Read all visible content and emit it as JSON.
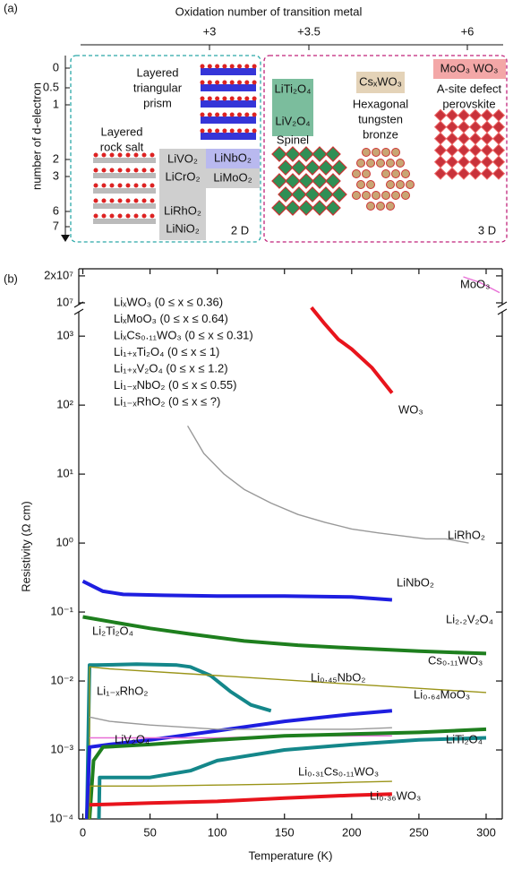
{
  "panel_a": {
    "panel_label": "(a)",
    "title": "Oxidation number of transition metal",
    "top_ticks": [
      "+3",
      "+3.5",
      "+6"
    ],
    "y_label": "number of d-electron",
    "y_ticks": [
      "0",
      "0.5",
      "1",
      "2",
      "3",
      "6",
      "7"
    ],
    "dimension_labels": [
      "2 D",
      "3 D"
    ],
    "prism_label": [
      "Layered",
      "triangular",
      "prism"
    ],
    "rocksalt_label": [
      "Layered",
      "rock salt"
    ],
    "gray_box": [
      "LiVO₂",
      "LiCrO₂",
      "LiRhO₂",
      "LiNiO₂"
    ],
    "purple_box": [
      "LiNbO₂",
      "LiMoO₂"
    ],
    "spinel_box": [
      "LiTi₂O₄",
      "LiV₂O₄"
    ],
    "spinel_label": "Spinel",
    "bronze_box": "CsₓWO₃",
    "bronze_label": [
      "Hexagonal",
      "tungsten",
      "bronze"
    ],
    "perovskite_box": "MoO₃ WO₃",
    "perovskite_label": [
      "A-site defect",
      "perovskite"
    ]
  },
  "chart_data": {
    "type": "line",
    "panel_label": "(b)",
    "x_label": "Temperature (K)",
    "y_label": "Resistivity (Ω cm)",
    "yscale": "log",
    "xlim": [
      -3,
      312
    ],
    "xticks": [
      0,
      50,
      100,
      150,
      200,
      250,
      300
    ],
    "ylim": [
      0.0001,
      2000
    ],
    "yticks": [
      {
        "value": 0.0001,
        "label": "10⁻⁴"
      },
      {
        "value": 0.001,
        "label": "10⁻³"
      },
      {
        "value": 0.01,
        "label": "10⁻²"
      },
      {
        "value": 0.1,
        "label": "10⁻¹"
      },
      {
        "value": 1,
        "label": "10⁰"
      },
      {
        "value": 10,
        "label": "10¹"
      },
      {
        "value": 100,
        "label": "10²"
      },
      {
        "value": 1000,
        "label": "10³"
      }
    ],
    "ylim_upper": [
      10000000,
      24000000
    ],
    "yticks_upper": [
      {
        "value": 10000000,
        "label": "10⁷"
      },
      {
        "value": 20000000,
        "label": "2x10⁷"
      }
    ],
    "legend": [
      {
        "name": "LiₓWO₃ (0 ≤ x ≤ 0.36)",
        "color": "#e8141c"
      },
      {
        "name": "LiₓMoO₃ (0 ≤ x ≤ 0.64)",
        "color": "#e86fd6"
      },
      {
        "name": "LiₓCs₀.₁₁WO₃ (0 ≤ x ≤ 0.31)",
        "color": "#9a9418"
      },
      {
        "name": "Li₁₊ₓTi₂O₄ (0 ≤ x ≤ 1)",
        "color": "#14878a"
      },
      {
        "name": "Li₁₊ₓV₂O₄ (0 ≤ x ≤ 1.2)",
        "color": "#1e7f1e"
      },
      {
        "name": "Li₁₋ₓNbO₂ (0 ≤ x ≤ 0.55)",
        "color": "#1e1ee0"
      },
      {
        "name": "Li₁₋ₓRhO₂ (0 ≤ x ≤ ?)",
        "color": "#999999"
      }
    ],
    "series": [
      {
        "name": "WO₃",
        "color": "#e8141c",
        "x": [
          170,
          180,
          190,
          200,
          215,
          230
        ],
        "values": [
          2600,
          1500,
          900,
          650,
          350,
          150
        ]
      },
      {
        "name": "MoO₃",
        "color": "#e86fd6",
        "panel": "upper",
        "x": [
          283,
          295,
          310
        ],
        "values": [
          19500000,
          17000000,
          13000000
        ]
      },
      {
        "name": "LiRhO₂",
        "color": "#999999",
        "x": [
          78,
          90,
          105,
          120,
          140,
          160,
          180,
          200,
          220,
          240,
          255,
          270,
          287
        ],
        "values": [
          50,
          20,
          10,
          6,
          3.8,
          2.6,
          2,
          1.6,
          1.4,
          1.25,
          1.15,
          1.15,
          1
        ]
      },
      {
        "name": "LiNbO₂",
        "color": "#1e1ee0",
        "x": [
          0,
          5,
          15,
          30,
          60,
          100,
          150,
          200,
          230
        ],
        "values": [
          0.28,
          0.25,
          0.2,
          0.18,
          0.175,
          0.17,
          0.17,
          0.165,
          0.15
        ]
      },
      {
        "name": "Li₂.₂V₂O₄",
        "color": "#1e7f1e",
        "x": [
          0,
          25,
          50,
          80,
          120,
          160,
          200,
          250,
          300
        ],
        "values": [
          0.085,
          0.07,
          0.058,
          0.048,
          0.038,
          0.033,
          0.03,
          0.027,
          0.025
        ]
      },
      {
        "name": "Li₂Ti₂O₄",
        "color": "#14878a",
        "x": [
          3,
          5,
          10,
          40,
          70,
          80,
          95,
          110,
          125,
          140
        ],
        "values": [
          0.0001,
          0.017,
          0.017,
          0.0175,
          0.017,
          0.016,
          0.012,
          0.007,
          0.0045,
          0.0037
        ]
      },
      {
        "name": "Cs₀.₁₁WO₃",
        "color": "#9a9418",
        "x": [
          5,
          5,
          20,
          100,
          200,
          300
        ],
        "values": [
          0.0001,
          0.016,
          0.015,
          0.012,
          0.009,
          0.0068
        ]
      },
      {
        "name": "Li₀.₄₅NbO₂",
        "color": "#1e1ee0",
        "x": [
          3,
          5,
          20,
          50,
          100,
          150,
          200,
          230
        ],
        "values": [
          0.0001,
          0.0011,
          0.0012,
          0.0014,
          0.0019,
          0.0026,
          0.0033,
          0.0037
        ]
      },
      {
        "name": "Li₁₋ₓRhO₂",
        "color": "#999999",
        "x": [
          5,
          20,
          50,
          100,
          150,
          200,
          230
        ],
        "values": [
          0.003,
          0.0026,
          0.0023,
          0.002,
          0.002,
          0.002,
          0.0021
        ]
      },
      {
        "name": "Li₀.₆₄MoO₃",
        "color": "#e86fd6",
        "x": [
          5,
          50,
          100,
          150,
          200,
          230
        ],
        "values": [
          0.0015,
          0.0015,
          0.0015,
          0.0016,
          0.0016,
          0.0016
        ]
      },
      {
        "name": "LiV₂O₄",
        "color": "#1e7f1e",
        "x": [
          5,
          8,
          15,
          50,
          100,
          150,
          200,
          250,
          300
        ],
        "values": [
          0.0001,
          0.0007,
          0.0011,
          0.0012,
          0.0014,
          0.0016,
          0.0017,
          0.0018,
          0.002
        ]
      },
      {
        "name": "LiTi₂O₄",
        "color": "#14878a",
        "x": [
          12,
          12.5,
          20,
          50,
          80,
          100,
          150,
          200,
          250,
          300
        ],
        "values": [
          0.0001,
          0.0004,
          0.0004,
          0.0004,
          0.0005,
          0.0007,
          0.001,
          0.0012,
          0.0014,
          0.0015
        ]
      },
      {
        "name": "Li₀.₃₁Cs₀.₁₁WO₃",
        "color": "#9a9418",
        "x": [
          5,
          5.5,
          50,
          100,
          150,
          200,
          230
        ],
        "values": [
          0.0001,
          0.0003,
          0.0003,
          0.00031,
          0.00032,
          0.00034,
          0.00035
        ]
      },
      {
        "name": "Li₀.₃₆WO₃",
        "color": "#e8141c",
        "x": [
          5,
          50,
          100,
          150,
          200,
          230
        ],
        "values": [
          0.00016,
          0.00017,
          0.00018,
          0.0002,
          0.00022,
          0.00023
        ]
      }
    ]
  }
}
